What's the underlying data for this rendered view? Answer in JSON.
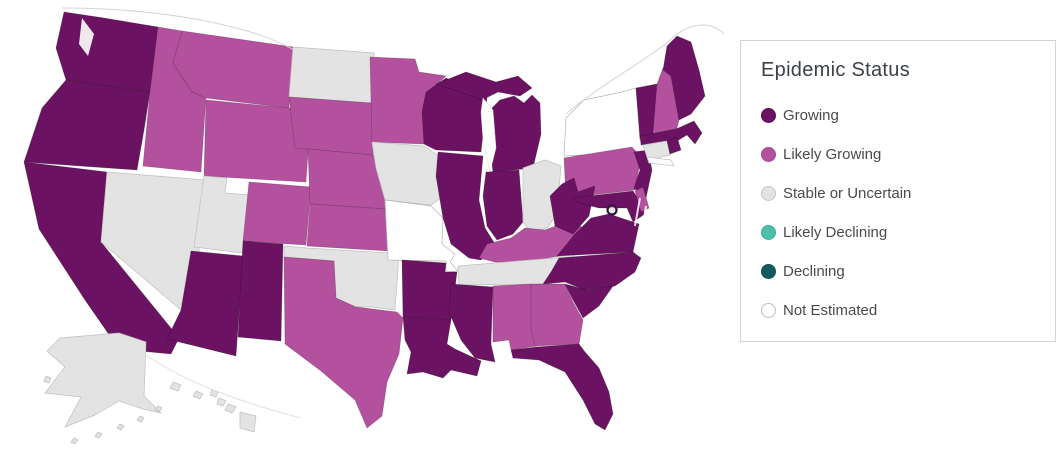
{
  "legend": {
    "title": "Epidemic Status",
    "items": [
      {
        "id": "growing",
        "label": "Growing",
        "color": "#6b1362",
        "border": "#5c0f54"
      },
      {
        "id": "likely_growing",
        "label": "Likely Growing",
        "color": "#b4519e",
        "border": "#a84794"
      },
      {
        "id": "stable",
        "label": "Stable or Uncertain",
        "color": "#e3e3e3",
        "border": "#c6c6c6"
      },
      {
        "id": "likely_declining",
        "label": "Likely Declining",
        "color": "#4ec0aa",
        "border": "#3fae99"
      },
      {
        "id": "declining",
        "label": "Declining",
        "color": "#115a5e",
        "border": "#0e4e52"
      },
      {
        "id": "not_estimated",
        "label": "Not Estimated",
        "color": "#ffffff",
        "border": "#bdbdbd"
      }
    ]
  },
  "map": {
    "description": "United States choropleth of epidemic status by state",
    "states": [
      {
        "id": "WA",
        "name": "Washington",
        "status": "growing"
      },
      {
        "id": "OR",
        "name": "Oregon",
        "status": "growing"
      },
      {
        "id": "CA",
        "name": "California",
        "status": "growing"
      },
      {
        "id": "NV",
        "name": "Nevada",
        "status": "stable"
      },
      {
        "id": "ID",
        "name": "Idaho",
        "status": "likely_growing"
      },
      {
        "id": "MT",
        "name": "Montana",
        "status": "likely_growing"
      },
      {
        "id": "WY",
        "name": "Wyoming",
        "status": "likely_growing"
      },
      {
        "id": "UT",
        "name": "Utah",
        "status": "stable"
      },
      {
        "id": "CO",
        "name": "Colorado",
        "status": "likely_growing"
      },
      {
        "id": "AZ",
        "name": "Arizona",
        "status": "growing"
      },
      {
        "id": "NM",
        "name": "New Mexico",
        "status": "growing"
      },
      {
        "id": "ND",
        "name": "North Dakota",
        "status": "stable"
      },
      {
        "id": "SD",
        "name": "South Dakota",
        "status": "likely_growing"
      },
      {
        "id": "NE",
        "name": "Nebraska",
        "status": "likely_growing"
      },
      {
        "id": "KS",
        "name": "Kansas",
        "status": "likely_growing"
      },
      {
        "id": "OK",
        "name": "Oklahoma",
        "status": "stable"
      },
      {
        "id": "TX",
        "name": "Texas",
        "status": "likely_growing"
      },
      {
        "id": "MN",
        "name": "Minnesota",
        "status": "likely_growing"
      },
      {
        "id": "IA",
        "name": "Iowa",
        "status": "stable"
      },
      {
        "id": "MO",
        "name": "Missouri",
        "status": "not_estimated"
      },
      {
        "id": "AR",
        "name": "Arkansas",
        "status": "growing"
      },
      {
        "id": "LA",
        "name": "Louisiana",
        "status": "growing"
      },
      {
        "id": "WI",
        "name": "Wisconsin",
        "status": "growing"
      },
      {
        "id": "IL",
        "name": "Illinois",
        "status": "growing"
      },
      {
        "id": "MI",
        "name": "Michigan",
        "status": "growing"
      },
      {
        "id": "IN",
        "name": "Indiana",
        "status": "growing"
      },
      {
        "id": "OH",
        "name": "Ohio",
        "status": "stable"
      },
      {
        "id": "KY",
        "name": "Kentucky",
        "status": "likely_growing"
      },
      {
        "id": "TN",
        "name": "Tennessee",
        "status": "stable"
      },
      {
        "id": "MS",
        "name": "Mississippi",
        "status": "growing"
      },
      {
        "id": "AL",
        "name": "Alabama",
        "status": "likely_growing"
      },
      {
        "id": "GA",
        "name": "Georgia",
        "status": "likely_growing"
      },
      {
        "id": "FL",
        "name": "Florida",
        "status": "growing"
      },
      {
        "id": "NY",
        "name": "New York",
        "status": "not_estimated"
      },
      {
        "id": "PA",
        "name": "Pennsylvania",
        "status": "likely_growing"
      },
      {
        "id": "WV",
        "name": "West Virginia",
        "status": "growing"
      },
      {
        "id": "VA",
        "name": "Virginia",
        "status": "growing"
      },
      {
        "id": "NC",
        "name": "North Carolina",
        "status": "growing"
      },
      {
        "id": "SC",
        "name": "South Carolina",
        "status": "growing"
      },
      {
        "id": "NJ",
        "name": "New Jersey",
        "status": "growing"
      },
      {
        "id": "MD",
        "name": "Maryland",
        "status": "growing"
      },
      {
        "id": "DE",
        "name": "Delaware",
        "status": "likely_growing"
      },
      {
        "id": "VT",
        "name": "Vermont",
        "status": "growing"
      },
      {
        "id": "NH",
        "name": "New Hampshire",
        "status": "likely_growing"
      },
      {
        "id": "ME",
        "name": "Maine",
        "status": "growing"
      },
      {
        "id": "MA",
        "name": "Massachusetts",
        "status": "growing"
      },
      {
        "id": "CT",
        "name": "Connecticut",
        "status": "stable"
      },
      {
        "id": "RI",
        "name": "Rhode Island",
        "status": "growing"
      },
      {
        "id": "AK",
        "name": "Alaska",
        "status": "stable"
      },
      {
        "id": "HI",
        "name": "Hawaii",
        "status": "stable"
      }
    ],
    "dc_marker": {
      "name": "District of Columbia",
      "status": "stable"
    }
  }
}
